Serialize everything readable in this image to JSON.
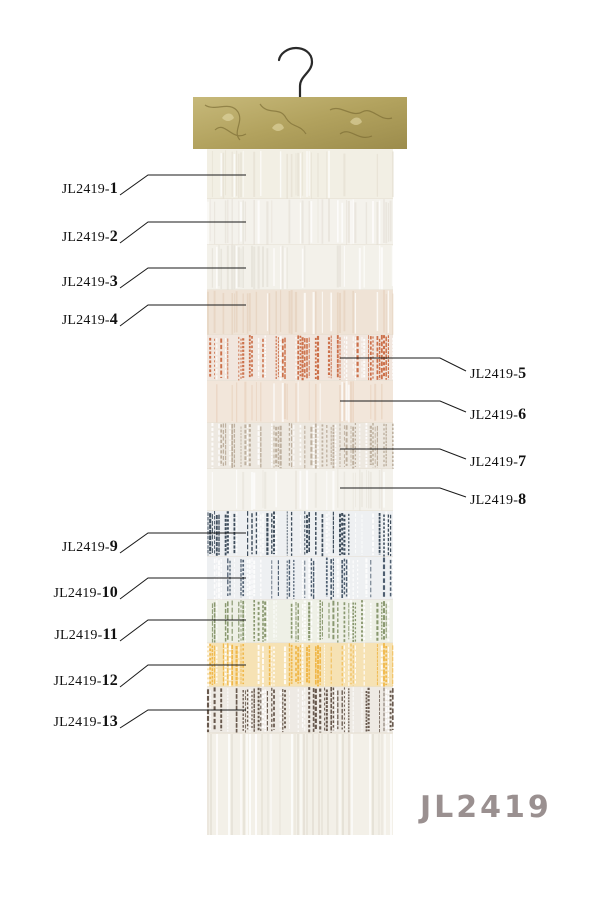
{
  "product": {
    "code": "JL2419"
  },
  "colors": {
    "header_board": "#b9ab6a",
    "header_board_dark": "#8e7f44",
    "fabric_base": "#f3f0e8",
    "code_text": "#9a9090"
  },
  "icons": {
    "hanger": "hanger-icon"
  },
  "swatches": [
    {
      "code": "JL2419-",
      "num": "1",
      "color": "#f2efe4",
      "accent": "#e6e1d3",
      "side": "left"
    },
    {
      "code": "JL2419-",
      "num": "2",
      "color": "#f4f2ec",
      "accent": "#e7e3da",
      "side": "left"
    },
    {
      "code": "JL2419-",
      "num": "3",
      "color": "#f3f1ea",
      "accent": "#e5e1d8",
      "side": "left"
    },
    {
      "code": "JL2419-",
      "num": "4",
      "color": "#efe3d6",
      "accent": "#e6d2bf",
      "side": "left"
    },
    {
      "code": "JL2419-",
      "num": "5",
      "color": "#f1e6de",
      "accent": "#c8643a",
      "side": "right"
    },
    {
      "code": "JL2419-",
      "num": "6",
      "color": "#f2e6da",
      "accent": "#e9d3bf",
      "side": "right"
    },
    {
      "code": "JL2419-",
      "num": "7",
      "color": "#ede8e0",
      "accent": "#b9ab98",
      "side": "right"
    },
    {
      "code": "JL2419-",
      "num": "8",
      "color": "#f4f2ec",
      "accent": "#e8e5dc",
      "side": "right"
    },
    {
      "code": "JL2419-",
      "num": "9",
      "color": "#eef0f2",
      "accent": "#2c3c4c",
      "side": "left"
    },
    {
      "code": "JL2419-",
      "num": "10",
      "color": "#eef0f2",
      "accent": "#3d4f63",
      "side": "left"
    },
    {
      "code": "JL2419-",
      "num": "11",
      "color": "#eef0e6",
      "accent": "#7f8f63",
      "side": "left"
    },
    {
      "code": "JL2419-",
      "num": "12",
      "color": "#f6e2b4",
      "accent": "#f0b440",
      "side": "left"
    },
    {
      "code": "JL2419-",
      "num": "13",
      "color": "#eeeae4",
      "accent": "#5a4a3e",
      "side": "left"
    }
  ]
}
